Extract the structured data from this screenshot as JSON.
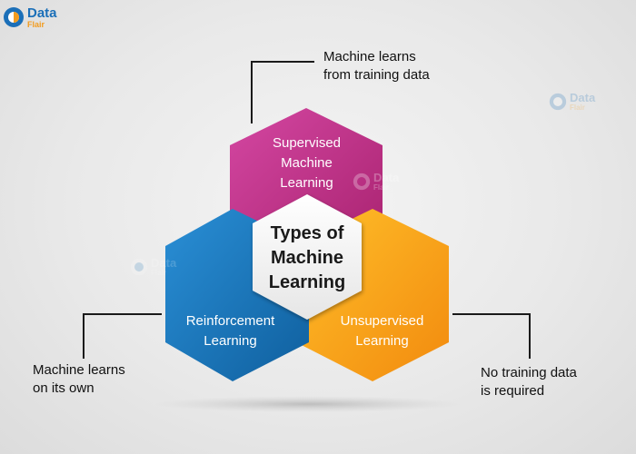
{
  "brand": {
    "word1": "Data",
    "word2": "Flair",
    "mark": "D"
  },
  "watermark": {
    "word1": "Data",
    "word2": "Flair",
    "mark": "D"
  },
  "center": {
    "label": "Types of\nMachine\nLearning"
  },
  "hexagons": {
    "supervised": {
      "label": "Supervised\nMachine\nLearning",
      "color": "#c1348d"
    },
    "reinforcement": {
      "label": "Reinforcement\nLearning",
      "color": "#1976bb"
    },
    "unsupervised": {
      "label": "Unsupervised\nLearning",
      "color": "#f49a12"
    }
  },
  "callouts": {
    "supervised": "Machine learns\nfrom training data",
    "reinforcement": "Machine learns\non its own",
    "unsupervised": "No training data\nis required"
  }
}
